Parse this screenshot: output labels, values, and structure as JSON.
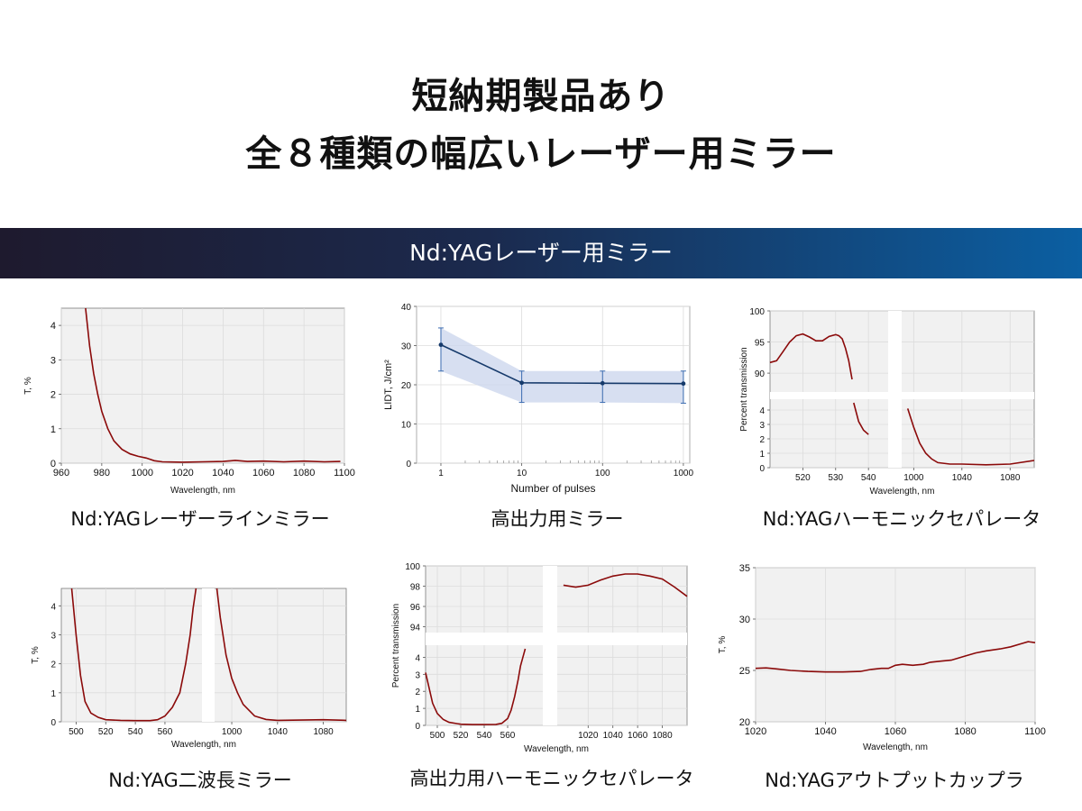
{
  "header": {
    "line1": "短納期製品あり",
    "line2": "全８種類の幅広いレーザー用ミラー"
  },
  "banner": {
    "label": "Nd:YAGレーザー用ミラー"
  },
  "colors": {
    "curve": "#8b0a0a",
    "lidt_line": "#163a6b",
    "lidt_band": "#c9d4ec",
    "banner_start": "#1e1a2e",
    "banner_end": "#0b5fa2"
  },
  "captions": {
    "c1": "Nd:YAGレーザーラインミラー",
    "c2": "高出力用ミラー",
    "c3": "Nd:YAGハーモニックセパレータ",
    "c4": "Nd:YAG二波長ミラー",
    "c5": "高出力用ハーモニックセパレータ",
    "c6": "Nd:YAGアウトプットカップラ"
  },
  "chart_data": [
    {
      "id": "c1",
      "type": "line",
      "xlabel": "Wavelength, nm",
      "ylabel": "T, %",
      "xlim": [
        960,
        1100
      ],
      "ylim": [
        0,
        4.5
      ],
      "xticks": [
        960,
        980,
        1000,
        1020,
        1040,
        1060,
        1080,
        1100
      ],
      "yticks": [
        0,
        1,
        2,
        3,
        4
      ],
      "grid": true,
      "series": [
        {
          "x": [
            972,
            974,
            976,
            978,
            980,
            983,
            986,
            990,
            994,
            998,
            1002,
            1006,
            1010,
            1020,
            1030,
            1040,
            1046,
            1052,
            1060,
            1070,
            1080,
            1090,
            1098
          ],
          "y": [
            4.5,
            3.4,
            2.6,
            2.0,
            1.5,
            1.0,
            0.65,
            0.4,
            0.27,
            0.2,
            0.15,
            0.07,
            0.04,
            0.03,
            0.04,
            0.05,
            0.08,
            0.05,
            0.06,
            0.04,
            0.06,
            0.04,
            0.05
          ]
        }
      ]
    },
    {
      "id": "c2",
      "type": "line",
      "xlabel": "Number of pulses",
      "ylabel": "LIDT, J/cm²",
      "xscale": "log",
      "xlim": [
        0.5,
        1200
      ],
      "ylim": [
        0,
        40
      ],
      "xticks": [
        1,
        10,
        100,
        1000
      ],
      "yticks": [
        0,
        10,
        20,
        30,
        40
      ],
      "grid": true,
      "series": [
        {
          "x": [
            1,
            10,
            100,
            1000
          ],
          "y": [
            30.2,
            20.5,
            20.4,
            20.3
          ],
          "err_low": [
            23.5,
            15.5,
            15.5,
            15.3
          ],
          "err_high": [
            34.5,
            23.5,
            23.5,
            23.5
          ]
        }
      ]
    },
    {
      "id": "c3",
      "type": "line",
      "xlabel": "Wavelength, nm",
      "ylabel": "Percent  transmission",
      "broken_x": [
        [
          510,
          546
        ],
        [
          990,
          1100
        ]
      ],
      "broken_y": [
        [
          0,
          4.5
        ],
        [
          89,
          100
        ]
      ],
      "xticks_left": [
        520,
        530,
        540
      ],
      "xticks_right": [
        1000,
        1040,
        1080
      ],
      "yticks_bottom": [
        0,
        1,
        2,
        3,
        4
      ],
      "yticks_top": [
        90,
        95,
        100
      ],
      "grid": true,
      "series": [
        {
          "segment": "left-top",
          "x": [
            510,
            512,
            514,
            516,
            518,
            520,
            522,
            524,
            526,
            528,
            530,
            531,
            532,
            533,
            534,
            535
          ],
          "y": [
            91.7,
            92.0,
            93.5,
            95.0,
            96.0,
            96.3,
            95.8,
            95.2,
            95.2,
            95.9,
            96.2,
            96.0,
            95.5,
            94.0,
            92.0,
            89.0
          ]
        },
        {
          "segment": "left-bottom",
          "x": [
            535.5,
            537,
            538.5,
            540
          ],
          "y": [
            4.5,
            3.2,
            2.6,
            2.3
          ]
        },
        {
          "segment": "right",
          "x": [
            995,
            1000,
            1005,
            1010,
            1015,
            1020,
            1030,
            1040,
            1060,
            1080,
            1100
          ],
          "y": [
            4.1,
            2.8,
            1.7,
            1.0,
            0.6,
            0.35,
            0.25,
            0.25,
            0.2,
            0.25,
            0.5
          ]
        }
      ]
    },
    {
      "id": "c4",
      "type": "line",
      "xlabel": "Wavelength, nm",
      "ylabel": "T, %",
      "broken_x": [
        [
          490,
          585
        ],
        [
          985,
          1100
        ]
      ],
      "ylim": [
        0,
        4.6
      ],
      "xticks_left": [
        500,
        520,
        540,
        560
      ],
      "xticks_right": [
        1000,
        1040,
        1080
      ],
      "yticks": [
        0,
        1,
        2,
        3,
        4
      ],
      "grid": true,
      "series": [
        {
          "segment": "left",
          "x": [
            497,
            500,
            503,
            506,
            510,
            515,
            520,
            530,
            540,
            550,
            555,
            560,
            565,
            570,
            574,
            577,
            579,
            581
          ],
          "y": [
            4.6,
            3.0,
            1.6,
            0.7,
            0.3,
            0.15,
            0.07,
            0.05,
            0.04,
            0.04,
            0.07,
            0.2,
            0.5,
            1.0,
            2.0,
            3.0,
            3.9,
            4.6
          ]
        },
        {
          "segment": "right",
          "x": [
            987,
            990,
            995,
            1000,
            1005,
            1010,
            1020,
            1030,
            1040,
            1060,
            1080,
            1100
          ],
          "y": [
            4.6,
            3.6,
            2.3,
            1.5,
            1.0,
            0.6,
            0.2,
            0.08,
            0.05,
            0.06,
            0.07,
            0.05
          ]
        }
      ]
    },
    {
      "id": "c5",
      "type": "line",
      "xlabel": "Wavelength, nm",
      "ylabel": "Percent  transmission",
      "broken_x": [
        [
          490,
          590
        ],
        [
          995,
          1100
        ]
      ],
      "broken_y": [
        [
          0,
          4.5
        ],
        [
          92,
          100
        ]
      ],
      "xticks_left": [
        500,
        520,
        540,
        560
      ],
      "xticks_right": [
        1020,
        1040,
        1060,
        1080
      ],
      "yticks_bottom": [
        0,
        1,
        2,
        3,
        4
      ],
      "yticks_top": [
        94,
        96,
        98,
        100
      ],
      "grid": true,
      "series": [
        {
          "segment": "left",
          "x": [
            490,
            493,
            496,
            500,
            505,
            510,
            520,
            530,
            540,
            550,
            555,
            560,
            563,
            566,
            569,
            571,
            573,
            575
          ],
          "y": [
            3.1,
            2.2,
            1.3,
            0.7,
            0.35,
            0.18,
            0.07,
            0.05,
            0.05,
            0.06,
            0.12,
            0.4,
            0.9,
            1.7,
            2.7,
            3.5,
            4.0,
            4.5
          ]
        },
        {
          "segment": "right-top",
          "x": [
            1000,
            1010,
            1020,
            1030,
            1040,
            1050,
            1060,
            1070,
            1080,
            1090,
            1100
          ],
          "y": [
            98.1,
            97.9,
            98.1,
            98.6,
            99.0,
            99.2,
            99.2,
            99.0,
            98.7,
            97.9,
            97.0
          ]
        }
      ]
    },
    {
      "id": "c6",
      "type": "line",
      "xlabel": "Wavelength, nm",
      "ylabel": "T, %",
      "xlim": [
        1020,
        1100
      ],
      "ylim": [
        20,
        35
      ],
      "xticks": [
        1020,
        1040,
        1060,
        1080,
        1100
      ],
      "yticks": [
        20,
        25,
        30,
        35
      ],
      "grid": true,
      "series": [
        {
          "x": [
            1020,
            1023,
            1026,
            1030,
            1035,
            1040,
            1045,
            1050,
            1053,
            1056,
            1058,
            1060,
            1062,
            1065,
            1068,
            1070,
            1073,
            1076,
            1080,
            1083,
            1086,
            1090,
            1093,
            1096,
            1098,
            1100
          ],
          "y": [
            25.2,
            25.25,
            25.15,
            25.0,
            24.9,
            24.85,
            24.85,
            24.9,
            25.1,
            25.2,
            25.2,
            25.5,
            25.6,
            25.5,
            25.6,
            25.8,
            25.9,
            26.0,
            26.4,
            26.7,
            26.9,
            27.1,
            27.3,
            27.6,
            27.8,
            27.7
          ]
        }
      ]
    }
  ]
}
